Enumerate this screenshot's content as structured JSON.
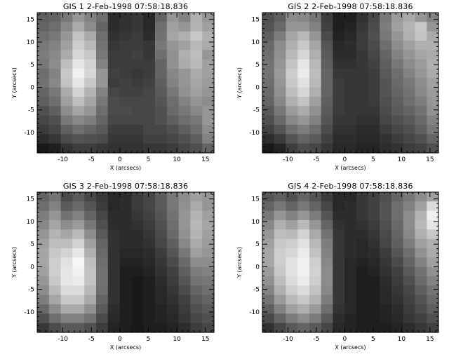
{
  "panels": [
    {
      "title": "GIS 1  2-Feb-1998 07:58:18.836",
      "x_label": "X (arcsecs)",
      "y_label": "Y (arcsecs)",
      "x_ticks": [
        "-10",
        "-5",
        "0",
        "5",
        "10",
        "15"
      ],
      "y_ticks": [
        "15",
        "10",
        "5",
        "0",
        "-5",
        "-10"
      ],
      "grid": [
        [
          95,
          100,
          120,
          150,
          130,
          110,
          45,
          50,
          55,
          40,
          100,
          150,
          130,
          175,
          150
        ],
        [
          100,
          110,
          135,
          170,
          140,
          100,
          45,
          50,
          55,
          40,
          110,
          160,
          150,
          180,
          160
        ],
        [
          110,
          120,
          150,
          195,
          170,
          110,
          50,
          55,
          60,
          45,
          115,
          165,
          175,
          200,
          175
        ],
        [
          120,
          130,
          160,
          205,
          185,
          115,
          55,
          60,
          60,
          55,
          120,
          150,
          160,
          185,
          170
        ],
        [
          125,
          135,
          170,
          215,
          200,
          120,
          60,
          60,
          65,
          55,
          110,
          145,
          175,
          190,
          150
        ],
        [
          120,
          140,
          190,
          230,
          210,
          130,
          60,
          60,
          60,
          60,
          100,
          145,
          170,
          185,
          160
        ],
        [
          110,
          130,
          200,
          240,
          215,
          150,
          65,
          60,
          55,
          60,
          100,
          135,
          150,
          170,
          160
        ],
        [
          115,
          135,
          195,
          230,
          200,
          150,
          60,
          65,
          60,
          65,
          95,
          130,
          150,
          165,
          155
        ],
        [
          100,
          120,
          170,
          210,
          180,
          130,
          70,
          65,
          65,
          70,
          90,
          120,
          145,
          160,
          150
        ],
        [
          95,
          110,
          160,
          190,
          165,
          120,
          75,
          70,
          70,
          70,
          85,
          110,
          130,
          150,
          140
        ],
        [
          80,
          95,
          140,
          165,
          150,
          110,
          75,
          75,
          70,
          70,
          80,
          105,
          120,
          135,
          150
        ],
        [
          70,
          80,
          120,
          135,
          125,
          100,
          70,
          70,
          70,
          70,
          80,
          95,
          110,
          120,
          150
        ],
        [
          60,
          70,
          95,
          110,
          100,
          90,
          60,
          60,
          60,
          70,
          70,
          80,
          95,
          110,
          140
        ],
        [
          45,
          55,
          75,
          85,
          80,
          75,
          55,
          55,
          55,
          65,
          65,
          70,
          80,
          95,
          130
        ],
        [
          25,
          30,
          50,
          60,
          60,
          55,
          50,
          50,
          50,
          55,
          55,
          60,
          70,
          80,
          100
        ]
      ]
    },
    {
      "title": "GIS 2  2-Feb-1998 07:58:18.836",
      "x_label": "X (arcsecs)",
      "y_label": "Y (arcsecs)",
      "x_ticks": [
        "-10",
        "-5",
        "0",
        "5",
        "10",
        "15"
      ],
      "y_ticks": [
        "15",
        "10",
        "5",
        "0",
        "-5",
        "-10"
      ],
      "grid": [
        [
          80,
          95,
          140,
          135,
          120,
          60,
          30,
          30,
          50,
          70,
          120,
          155,
          170,
          150,
          130
        ],
        [
          85,
          105,
          150,
          150,
          130,
          65,
          30,
          35,
          55,
          75,
          125,
          160,
          180,
          200,
          150
        ],
        [
          95,
          125,
          165,
          185,
          150,
          75,
          35,
          40,
          60,
          80,
          120,
          150,
          175,
          195,
          170
        ],
        [
          105,
          140,
          175,
          200,
          165,
          85,
          40,
          45,
          60,
          75,
          110,
          140,
          160,
          175,
          175
        ],
        [
          110,
          145,
          185,
          215,
          175,
          90,
          45,
          45,
          55,
          70,
          100,
          130,
          150,
          165,
          170
        ],
        [
          115,
          150,
          195,
          230,
          185,
          95,
          50,
          50,
          55,
          65,
          95,
          120,
          140,
          155,
          175
        ],
        [
          115,
          155,
          205,
          235,
          190,
          100,
          55,
          55,
          55,
          60,
          90,
          110,
          130,
          150,
          170
        ],
        [
          110,
          150,
          200,
          225,
          185,
          100,
          60,
          55,
          55,
          60,
          85,
          105,
          120,
          140,
          160
        ],
        [
          105,
          145,
          190,
          215,
          175,
          100,
          60,
          55,
          55,
          60,
          85,
          100,
          115,
          135,
          155
        ],
        [
          100,
          135,
          175,
          195,
          160,
          95,
          60,
          55,
          55,
          60,
          80,
          95,
          110,
          125,
          150
        ],
        [
          90,
          120,
          155,
          170,
          145,
          90,
          60,
          55,
          55,
          55,
          75,
          90,
          100,
          115,
          145
        ],
        [
          80,
          105,
          135,
          150,
          130,
          85,
          55,
          55,
          50,
          50,
          70,
          80,
          90,
          105,
          130
        ],
        [
          65,
          85,
          110,
          125,
          110,
          75,
          50,
          50,
          45,
          45,
          60,
          70,
          80,
          95,
          120
        ],
        [
          45,
          60,
          85,
          100,
          90,
          65,
          45,
          45,
          40,
          40,
          50,
          60,
          70,
          80,
          100
        ],
        [
          25,
          35,
          60,
          75,
          70,
          55,
          40,
          40,
          35,
          35,
          45,
          50,
          60,
          65,
          80
        ]
      ]
    },
    {
      "title": "GIS 3  2-Feb-1998 07:58:18.836",
      "x_label": "X (arcsecs)",
      "y_label": "Y (arcsecs)",
      "x_ticks": [
        "-10",
        "-5",
        "0",
        "5",
        "10",
        "15"
      ],
      "y_ticks": [
        "15",
        "10",
        "5",
        "0",
        "-5",
        "-10"
      ],
      "grid": [
        [
          100,
          115,
          75,
          90,
          70,
          55,
          40,
          45,
          60,
          70,
          90,
          120,
          140,
          160,
          150
        ],
        [
          110,
          130,
          90,
          105,
          85,
          60,
          40,
          45,
          60,
          70,
          90,
          120,
          145,
          170,
          150
        ],
        [
          125,
          150,
          115,
          130,
          100,
          70,
          45,
          45,
          55,
          65,
          85,
          115,
          150,
          180,
          160
        ],
        [
          135,
          165,
          140,
          155,
          120,
          80,
          45,
          45,
          50,
          60,
          80,
          110,
          150,
          185,
          165
        ],
        [
          150,
          180,
          165,
          185,
          140,
          90,
          50,
          45,
          45,
          55,
          75,
          105,
          145,
          180,
          160
        ],
        [
          160,
          190,
          190,
          210,
          160,
          100,
          50,
          45,
          45,
          50,
          70,
          95,
          135,
          170,
          155
        ],
        [
          165,
          200,
          210,
          230,
          175,
          105,
          50,
          40,
          40,
          45,
          60,
          85,
          120,
          160,
          150
        ],
        [
          165,
          205,
          225,
          245,
          190,
          110,
          50,
          35,
          35,
          40,
          55,
          75,
          105,
          140,
          140
        ],
        [
          160,
          205,
          230,
          240,
          195,
          115,
          50,
          30,
          30,
          35,
          50,
          65,
          95,
          125,
          130
        ],
        [
          150,
          200,
          230,
          235,
          195,
          115,
          50,
          30,
          25,
          30,
          45,
          60,
          85,
          115,
          120
        ],
        [
          140,
          185,
          220,
          220,
          185,
          110,
          50,
          30,
          25,
          30,
          40,
          55,
          75,
          100,
          110
        ],
        [
          125,
          165,
          200,
          200,
          170,
          100,
          50,
          30,
          25,
          30,
          40,
          50,
          65,
          90,
          100
        ],
        [
          105,
          140,
          170,
          170,
          145,
          90,
          45,
          30,
          25,
          30,
          35,
          45,
          60,
          80,
          90
        ],
        [
          80,
          110,
          130,
          130,
          115,
          75,
          40,
          30,
          25,
          30,
          35,
          40,
          55,
          70,
          80
        ],
        [
          55,
          75,
          90,
          90,
          80,
          60,
          35,
          30,
          25,
          30,
          30,
          35,
          45,
          60,
          70
        ]
      ]
    },
    {
      "title": "GIS 4  2-Feb-1998 07:58:18.836",
      "x_label": "X (arcsecs)",
      "y_label": "Y (arcsecs)",
      "x_ticks": [
        "-10",
        "-5",
        "0",
        "5",
        "10",
        "15"
      ],
      "y_ticks": [
        "15",
        "10",
        "5",
        "0",
        "-5",
        "-10"
      ],
      "grid": [
        [
          85,
          95,
          80,
          100,
          85,
          60,
          40,
          40,
          55,
          65,
          80,
          100,
          120,
          140,
          160
        ],
        [
          100,
          120,
          100,
          120,
          100,
          70,
          40,
          45,
          55,
          65,
          85,
          110,
          130,
          160,
          220
        ],
        [
          120,
          150,
          130,
          150,
          125,
          85,
          45,
          45,
          55,
          65,
          85,
          110,
          140,
          180,
          240
        ],
        [
          135,
          175,
          160,
          185,
          150,
          100,
          50,
          45,
          50,
          60,
          80,
          105,
          140,
          185,
          230
        ],
        [
          150,
          190,
          185,
          210,
          170,
          115,
          55,
          45,
          45,
          55,
          75,
          100,
          135,
          175,
          200
        ],
        [
          160,
          200,
          205,
          225,
          185,
          125,
          55,
          45,
          40,
          50,
          70,
          95,
          125,
          160,
          175
        ],
        [
          165,
          205,
          215,
          235,
          195,
          130,
          55,
          45,
          40,
          45,
          60,
          85,
          110,
          145,
          170
        ],
        [
          165,
          205,
          225,
          240,
          205,
          135,
          55,
          40,
          35,
          40,
          55,
          75,
          100,
          130,
          160
        ],
        [
          155,
          200,
          225,
          240,
          210,
          140,
          55,
          40,
          30,
          35,
          50,
          65,
          90,
          115,
          145
        ],
        [
          145,
          190,
          220,
          235,
          205,
          140,
          55,
          40,
          30,
          30,
          45,
          60,
          80,
          105,
          130
        ],
        [
          130,
          175,
          205,
          220,
          195,
          135,
          55,
          40,
          30,
          30,
          40,
          55,
          70,
          95,
          115
        ],
        [
          115,
          155,
          185,
          200,
          180,
          125,
          55,
          40,
          30,
          30,
          40,
          50,
          65,
          85,
          105
        ],
        [
          95,
          130,
          160,
          175,
          155,
          110,
          50,
          40,
          30,
          30,
          35,
          45,
          60,
          75,
          95
        ],
        [
          75,
          100,
          125,
          140,
          125,
          90,
          45,
          35,
          30,
          30,
          35,
          40,
          55,
          65,
          80
        ],
        [
          50,
          70,
          90,
          100,
          90,
          70,
          40,
          35,
          30,
          30,
          30,
          35,
          45,
          55,
          65
        ]
      ]
    }
  ]
}
